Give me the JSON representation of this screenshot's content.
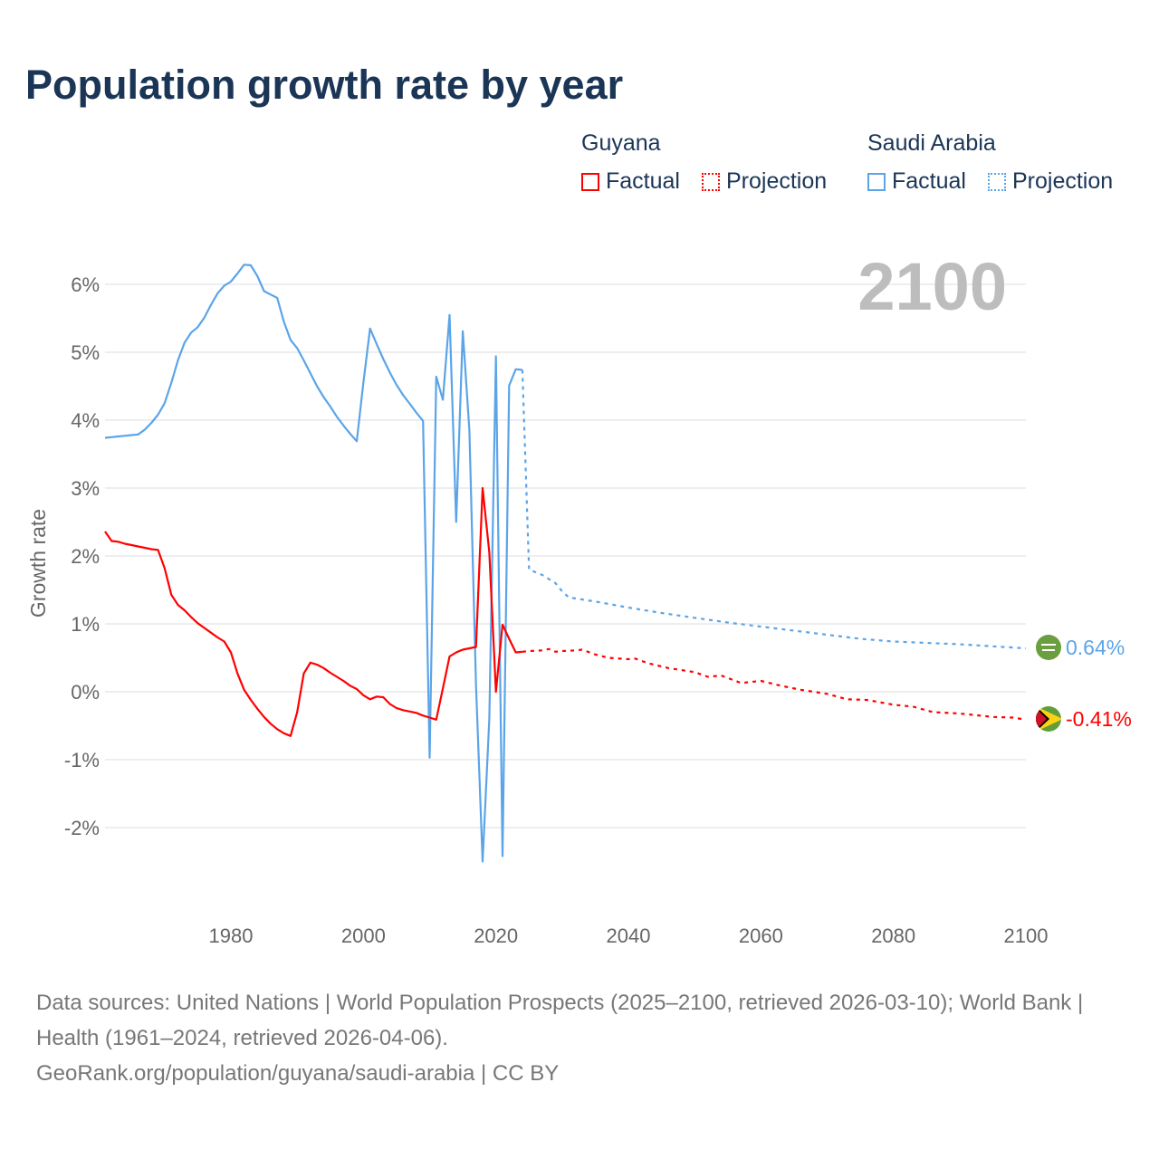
{
  "title": "Population growth rate by year",
  "legend": {
    "groups": [
      {
        "name": "Guyana",
        "factual": "Factual",
        "projection": "Projection",
        "color": "#ff0000"
      },
      {
        "name": "Saudi Arabia",
        "factual": "Factual",
        "projection": "Projection",
        "color": "#5ba4e8"
      }
    ]
  },
  "year_label": "2100",
  "sources": {
    "line1": "Data sources: United Nations | World Population Prospects (2025–2100, retrieved 2026-03-10); World Bank | Health (1961–2024, retrieved 2026-04-06).",
    "line2": "GeoRank.org/population/guyana/saudi-arabia | CC BY"
  },
  "chart_data": {
    "type": "line",
    "title": "Population growth rate by year",
    "xlabel": "",
    "ylabel": "Growth rate",
    "xlim": [
      1961,
      2100
    ],
    "ylim": [
      -3.2,
      6.6
    ],
    "x_ticks": [
      1980,
      2000,
      2020,
      2040,
      2060,
      2080,
      2100
    ],
    "y_ticks": [
      -2,
      -1,
      0,
      1,
      2,
      3,
      4,
      5,
      6
    ],
    "y_tick_labels": [
      "-2%",
      "-1%",
      "0%",
      "1%",
      "2%",
      "3%",
      "4%",
      "5%",
      "6%"
    ],
    "grid": true,
    "legend_position": "top-right",
    "series": [
      {
        "name": "Saudi Arabia",
        "color": "#5ba4e8",
        "end_label": "0.64%",
        "factual": {
          "x": [
            1961,
            1962,
            1963,
            1964,
            1965,
            1966,
            1967,
            1968,
            1969,
            1970,
            1971,
            1972,
            1973,
            1974,
            1975,
            1976,
            1977,
            1978,
            1979,
            1980,
            1981,
            1982,
            1983,
            1984,
            1985,
            1986,
            1987,
            1988,
            1989,
            1990,
            1991,
            1992,
            1993,
            1994,
            1995,
            1996,
            1997,
            1998,
            1999,
            2000,
            2001,
            2002,
            2003,
            2004,
            2005,
            2006,
            2007,
            2008,
            2009,
            2010,
            2011,
            2012,
            2013,
            2014,
            2015,
            2016,
            2017,
            2018,
            2019,
            2020,
            2021,
            2022,
            2023,
            2024
          ],
          "y": [
            3.74,
            3.75,
            3.76,
            3.77,
            3.78,
            3.79,
            3.86,
            3.96,
            4.08,
            4.25,
            4.55,
            4.88,
            5.14,
            5.29,
            5.37,
            5.51,
            5.7,
            5.87,
            5.98,
            6.04,
            6.16,
            6.29,
            6.28,
            6.12,
            5.9,
            5.85,
            5.8,
            5.45,
            5.18,
            5.06,
            4.88,
            4.69,
            4.5,
            4.34,
            4.2,
            4.05,
            3.92,
            3.8,
            3.69,
            4.55,
            5.35,
            5.12,
            4.9,
            4.7,
            4.52,
            4.37,
            4.24,
            4.11,
            3.99,
            -0.97,
            4.64,
            4.3,
            5.55,
            2.5,
            5.31,
            3.85,
            0.1,
            -2.5,
            -0.4,
            4.94,
            -2.42,
            4.51,
            4.75,
            4.74
          ]
        },
        "projection": {
          "x": [
            2024,
            2025,
            2026,
            2027,
            2028,
            2029,
            2030,
            2031,
            2035,
            2040,
            2045,
            2050,
            2055,
            2060,
            2065,
            2070,
            2075,
            2080,
            2085,
            2090,
            2095,
            2100
          ],
          "y": [
            4.74,
            1.8,
            1.76,
            1.72,
            1.66,
            1.6,
            1.48,
            1.39,
            1.33,
            1.24,
            1.16,
            1.09,
            1.02,
            0.96,
            0.9,
            0.84,
            0.78,
            0.74,
            0.72,
            0.7,
            0.67,
            0.64
          ]
        }
      },
      {
        "name": "Guyana",
        "color": "#ff0000",
        "end_label": "-0.41%",
        "factual": {
          "x": [
            1961,
            1962,
            1963,
            1964,
            1965,
            1966,
            1967,
            1968,
            1969,
            1970,
            1971,
            1972,
            1973,
            1974,
            1975,
            1976,
            1977,
            1978,
            1979,
            1980,
            1981,
            1982,
            1983,
            1984,
            1985,
            1986,
            1987,
            1988,
            1989,
            1990,
            1991,
            1992,
            1993,
            1994,
            1995,
            1996,
            1997,
            1998,
            1999,
            2000,
            2001,
            2002,
            2003,
            2004,
            2005,
            2006,
            2007,
            2008,
            2009,
            2010,
            2011,
            2012,
            2013,
            2014,
            2015,
            2016,
            2017,
            2018,
            2019,
            2020,
            2021,
            2022,
            2023,
            2024
          ],
          "y": [
            2.36,
            2.22,
            2.21,
            2.18,
            2.16,
            2.14,
            2.12,
            2.1,
            2.09,
            1.82,
            1.43,
            1.28,
            1.2,
            1.1,
            1.01,
            0.94,
            0.87,
            0.8,
            0.74,
            0.58,
            0.27,
            0.03,
            -0.12,
            -0.25,
            -0.37,
            -0.47,
            -0.55,
            -0.61,
            -0.65,
            -0.3,
            0.27,
            0.43,
            0.4,
            0.35,
            0.28,
            0.22,
            0.16,
            0.09,
            0.04,
            -0.05,
            -0.11,
            -0.07,
            -0.08,
            -0.18,
            -0.24,
            -0.27,
            -0.29,
            -0.31,
            -0.35,
            -0.38,
            -0.41,
            0.05,
            0.52,
            0.58,
            0.62,
            0.64,
            0.66,
            3.0,
            2.05,
            0.0,
            0.99,
            0.78,
            0.58,
            0.59
          ]
        },
        "projection": {
          "x": [
            2024,
            2025,
            2027,
            2028,
            2029,
            2030,
            2032,
            2033,
            2035,
            2037,
            2040,
            2041,
            2043,
            2046,
            2050,
            2052,
            2054,
            2057,
            2060,
            2063,
            2066,
            2070,
            2073,
            2076,
            2080,
            2083,
            2086,
            2090,
            2095,
            2098,
            2100
          ],
          "y": [
            0.59,
            0.6,
            0.61,
            0.63,
            0.59,
            0.6,
            0.61,
            0.62,
            0.55,
            0.5,
            0.48,
            0.49,
            0.42,
            0.35,
            0.29,
            0.22,
            0.24,
            0.13,
            0.16,
            0.09,
            0.03,
            -0.03,
            -0.11,
            -0.12,
            -0.19,
            -0.22,
            -0.3,
            -0.32,
            -0.37,
            -0.38,
            -0.41
          ]
        }
      }
    ]
  }
}
